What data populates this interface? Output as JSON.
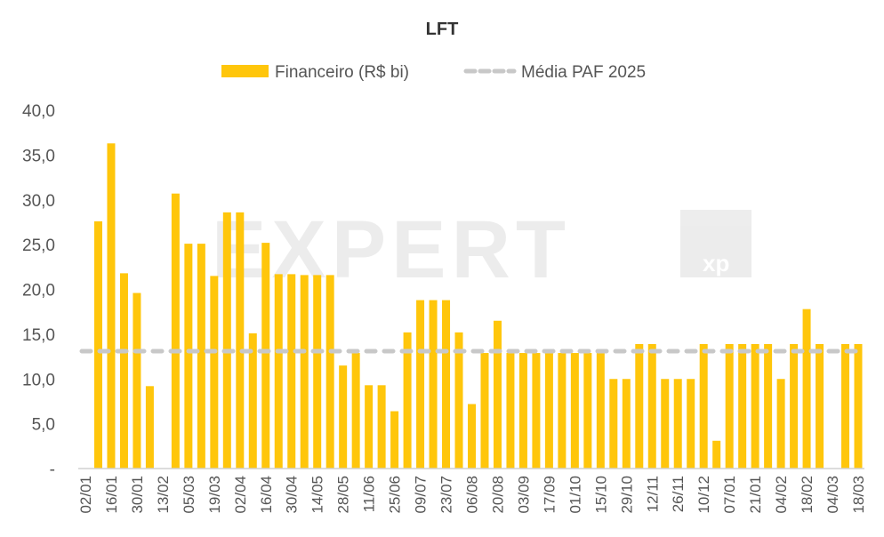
{
  "chart_data": {
    "type": "bar",
    "title": "LFT",
    "xlabel": "",
    "ylabel": "",
    "ylim": [
      0,
      40
    ],
    "yticks": [
      "-",
      "5,0",
      "10,0",
      "15,0",
      "20,0",
      "25,0",
      "30,0",
      "35,0",
      "40,0"
    ],
    "ytick_values": [
      0,
      5,
      10,
      15,
      20,
      25,
      30,
      35,
      40
    ],
    "grid": false,
    "legend_position": "top-center",
    "legend": [
      "Financeiro (R$ bi)",
      "Média PAF 2025"
    ],
    "categories": [
      "02/01",
      "",
      "16/01",
      "",
      "30/01",
      "",
      "13/02",
      "",
      "05/03",
      "",
      "19/03",
      "",
      "02/04",
      "",
      "16/04",
      "",
      "30/04",
      "",
      "14/05",
      "",
      "28/05",
      "",
      "11/06",
      "",
      "25/06",
      "",
      "09/07",
      "",
      "23/07",
      "",
      "06/08",
      "",
      "20/08",
      "",
      "03/09",
      "",
      "17/09",
      "",
      "01/10",
      "",
      "15/10",
      "",
      "29/10",
      "",
      "12/11",
      "",
      "26/11",
      "",
      "10/12",
      "",
      "07/01",
      "",
      "21/01",
      "",
      "04/02",
      "",
      "18/02",
      "",
      "04/03",
      "",
      "18/03"
    ],
    "series": [
      {
        "name": "Financeiro (R$ bi)",
        "type": "bar",
        "color": "#FFC60B",
        "values": [
          0,
          27.6,
          36.3,
          21.8,
          19.6,
          9.2,
          0,
          30.7,
          25.1,
          25.1,
          21.5,
          28.6,
          28.6,
          15.1,
          25.2,
          21.7,
          21.7,
          21.6,
          21.6,
          21.6,
          11.5,
          12.9,
          9.3,
          9.3,
          6.4,
          15.2,
          18.8,
          18.8,
          18.8,
          15.2,
          7.2,
          12.9,
          16.5,
          12.9,
          12.9,
          12.9,
          12.9,
          12.9,
          12.9,
          12.9,
          12.9,
          10.0,
          10.0,
          13.9,
          13.9,
          10.0,
          10.0,
          10.0,
          13.9,
          3.1,
          13.9,
          13.9,
          13.9,
          13.9,
          10.0,
          13.9,
          17.8,
          13.9,
          0,
          13.9,
          13.9
        ]
      },
      {
        "name": "Média PAF 2025",
        "type": "line",
        "style": "dashed",
        "color": "#C8C8C8",
        "value": 13.1
      }
    ]
  },
  "watermark": {
    "text": "EXPERT",
    "badge": "xp"
  }
}
